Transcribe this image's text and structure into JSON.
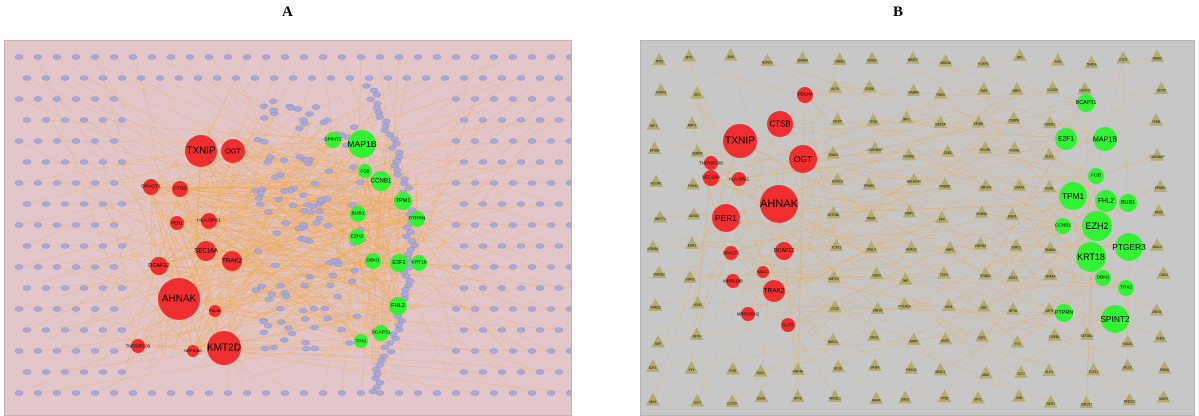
{
  "panels": {
    "a": {
      "letter": "A"
    },
    "b": {
      "letter": "B"
    }
  },
  "colors": {
    "up": "#ef2f2f",
    "down": "#33f233",
    "mirna": "#a9a9d9",
    "tf": "#b3ab6e",
    "edge": "#f2a33c",
    "bg_a": "#e2c6c9",
    "bg_b": "#c7c7c7"
  },
  "network_a": {
    "up_genes": [
      "TXNIP",
      "OGT",
      "CTSB",
      "DPAGT1",
      "PER1",
      "HLA-DPA1",
      "SEC16A",
      "DCAF12",
      "TRAK2",
      "AHNAK",
      "PDLIM",
      "TNFRSF10B",
      "KMT2D",
      "MRPS18B"
    ],
    "down_genes": [
      "SPINT2",
      "MAP1B",
      "FGB",
      "CCNB1",
      "TPM1",
      "BUB1",
      "EZH2",
      "PTPRN",
      "DBN1",
      "E2F1",
      "KRT18",
      "FHL2",
      "BCAP31",
      "TPX2"
    ]
  },
  "network_b": {
    "up_genes": [
      "PDLIM",
      "CTSB",
      "TXNIP",
      "OGT",
      "TNFRSF10B",
      "SEC16A",
      "HLA-DPA1",
      "AHNAK",
      "PER1",
      "DPAGT1",
      "DCAF12",
      "MRPS18B",
      "TRAK2",
      "NACC1",
      "MRPS35H2",
      "SLIT3"
    ],
    "down_genes": [
      "BCAP31",
      "E2F1",
      "MAP1B",
      "FGB",
      "TPM1",
      "FHL2",
      "BUB1",
      "CCNB1",
      "EZH2",
      "PTGER3",
      "KRT18",
      "DBN1",
      "TPX2",
      "PTPRN",
      "SPINT2"
    ],
    "tf_labels": [
      "TP53",
      "FOXP3",
      "TAF1",
      "EP300",
      "RCOR1",
      "ZNF274",
      "KDM5A",
      "ZNF263",
      "TRIM22",
      "SRF",
      "E2F1",
      "MAX",
      "MYC",
      "SP1",
      "NRF1",
      "CEBPB",
      "FOXA1",
      "GATA3",
      "ESR1",
      "STAT3",
      "SOX2",
      "NFYA",
      "YY1",
      "TCF7",
      "JUN",
      "FOS",
      "CLOCK",
      "RUNX1",
      "ELK1",
      "EGR1",
      "SMAD4",
      "HNF4A",
      "ATF3",
      "CREB1",
      "KLF4",
      "REST",
      "TEAD4",
      "HOXC9",
      "SETDB1",
      "TCF12",
      "ZNF217",
      "CTCF",
      "RAD21",
      "BCL6",
      "NFE2L2",
      "SNAI2",
      "SOX9",
      "TFEB",
      "CDKN2AP",
      "PPARG",
      "PAX5",
      "SALL4",
      "CBX3",
      "ZNF24",
      "CHD1",
      "SIN3A",
      "MAFK",
      "NR2F2",
      "GABPA",
      "IRF1",
      "FOXM1",
      "BHLHE40",
      "RBPJ",
      "HDAC2",
      "TBP",
      "POLR2A",
      "ARNT",
      "FOXO3",
      "CHD2",
      "ARID3A",
      "PBX3",
      "MEF2A",
      "ZEB1",
      "PRDM1",
      "ZFX",
      "EBF1",
      "TCF3",
      "MXI1",
      "IKZF1",
      "NR3C1"
    ]
  }
}
